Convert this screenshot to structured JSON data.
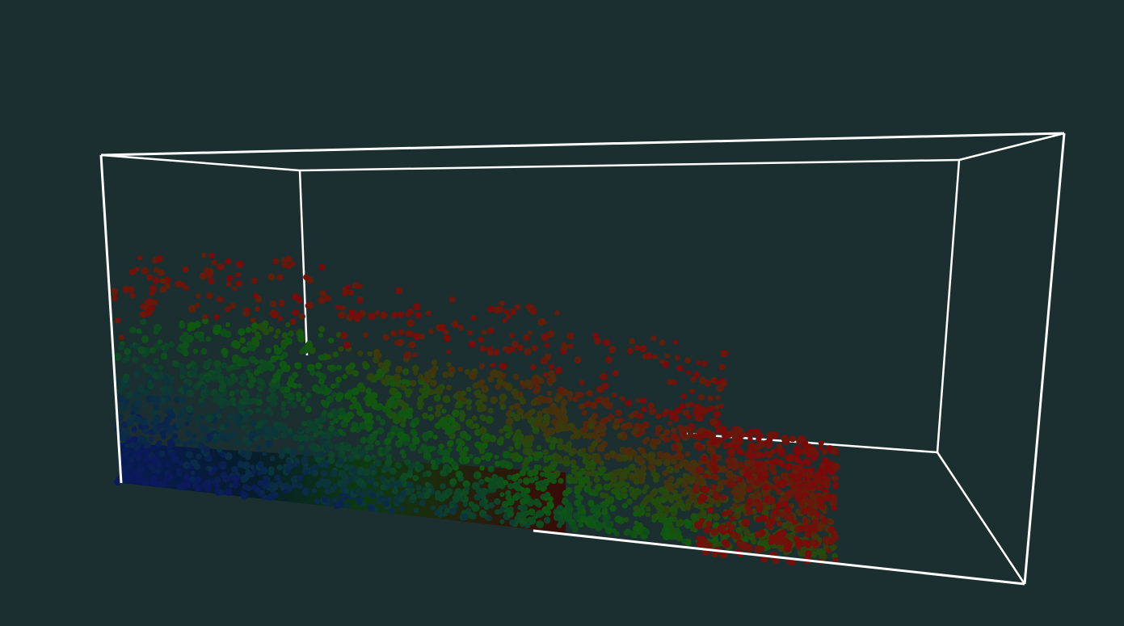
{
  "viewport": {
    "background_color": "#1c2f30",
    "bounding_box_color": "#ffffff",
    "particle_colors": {
      "low": "#0a1a5a",
      "mid": "#0f5a0f",
      "high": "#7a0a0a"
    }
  }
}
